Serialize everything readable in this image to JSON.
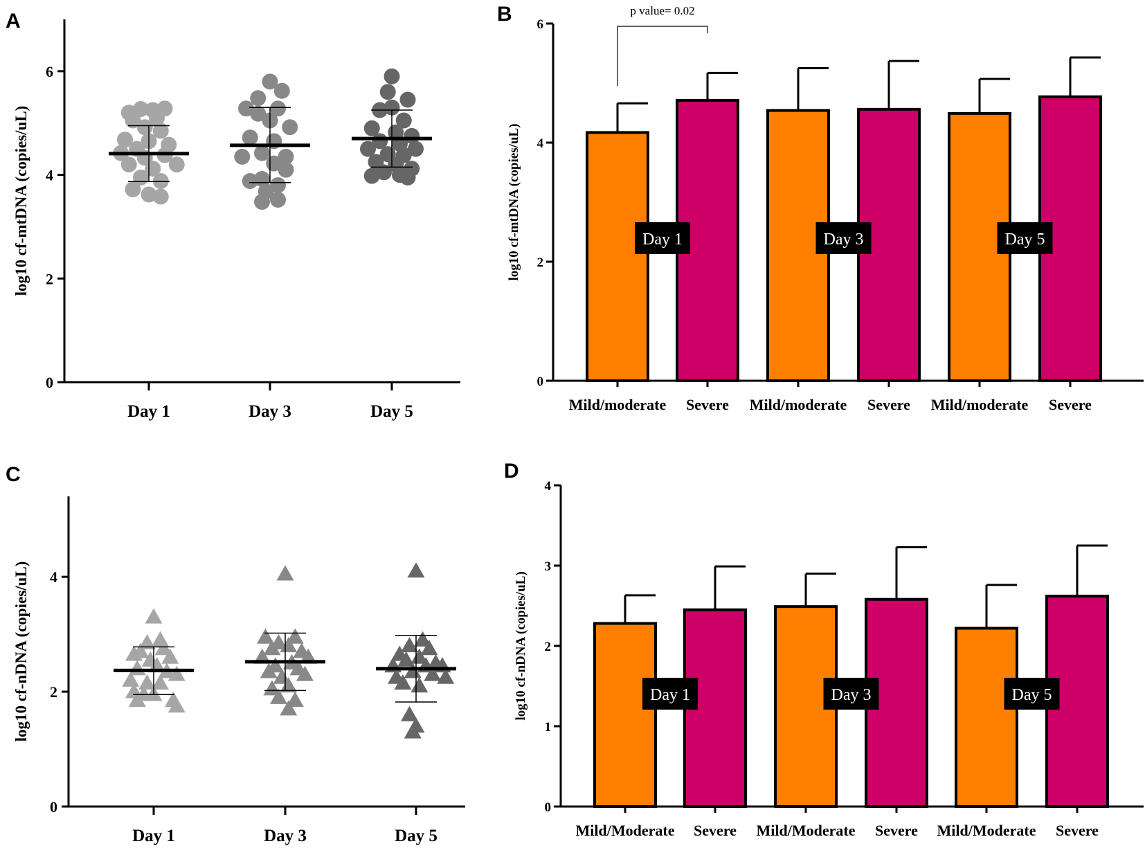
{
  "panels": [
    "A",
    "B",
    "C",
    "D"
  ],
  "colors": {
    "mild": "#ff8000",
    "severe": "#cc0066",
    "day1": "#a6a6a6",
    "day3": "#888888",
    "day5": "#666666",
    "axis": "#000000",
    "label_box": "#000000"
  },
  "chart_data": [
    {
      "panel": "A",
      "type": "scatter",
      "marker": "circle",
      "ylabel": "log10 cf-mtDNA (copies/uL)",
      "ylim": [
        0,
        7
      ],
      "yticks": [
        0,
        2,
        4,
        6
      ],
      "categories": [
        "Day 1",
        "Day 3",
        "Day 5"
      ],
      "series": [
        {
          "name": "Day 1",
          "color": "#a6a6a6",
          "mean": 4.41,
          "sd_upper": 4.95,
          "sd_lower": 3.87,
          "points": [
            {
              "x": -0.25,
              "y": 5.2
            },
            {
              "x": -0.1,
              "y": 5.27
            },
            {
              "x": 0.05,
              "y": 5.25
            },
            {
              "x": 0.2,
              "y": 5.28
            },
            {
              "x": -0.2,
              "y": 5.05
            },
            {
              "x": 0.1,
              "y": 5.1
            },
            {
              "x": -0.05,
              "y": 4.92
            },
            {
              "x": 0.15,
              "y": 4.85
            },
            {
              "x": -0.3,
              "y": 4.68
            },
            {
              "x": 0.0,
              "y": 4.65
            },
            {
              "x": 0.25,
              "y": 4.58
            },
            {
              "x": -0.15,
              "y": 4.5
            },
            {
              "x": -0.35,
              "y": 4.42
            },
            {
              "x": 0.2,
              "y": 4.38
            },
            {
              "x": -0.05,
              "y": 4.33
            },
            {
              "x": 0.35,
              "y": 4.2
            },
            {
              "x": -0.25,
              "y": 4.2
            },
            {
              "x": 0.05,
              "y": 4.12
            },
            {
              "x": -0.1,
              "y": 3.95
            },
            {
              "x": 0.15,
              "y": 3.88
            },
            {
              "x": -0.2,
              "y": 3.72
            },
            {
              "x": 0.0,
              "y": 3.62
            },
            {
              "x": 0.15,
              "y": 3.58
            }
          ]
        },
        {
          "name": "Day 3",
          "color": "#888888",
          "mean": 4.57,
          "sd_upper": 5.3,
          "sd_lower": 3.85,
          "points": [
            {
              "x": 0.0,
              "y": 5.8
            },
            {
              "x": 0.15,
              "y": 5.62
            },
            {
              "x": -0.15,
              "y": 5.48
            },
            {
              "x": -0.3,
              "y": 5.28
            },
            {
              "x": 0.1,
              "y": 5.28
            },
            {
              "x": -0.15,
              "y": 5.18
            },
            {
              "x": 0.0,
              "y": 5.05
            },
            {
              "x": 0.25,
              "y": 4.92
            },
            {
              "x": -0.25,
              "y": 4.72
            },
            {
              "x": 0.05,
              "y": 4.65
            },
            {
              "x": -0.1,
              "y": 4.42
            },
            {
              "x": 0.2,
              "y": 4.35
            },
            {
              "x": -0.35,
              "y": 4.35
            },
            {
              "x": 0.05,
              "y": 4.22
            },
            {
              "x": 0.2,
              "y": 4.1
            },
            {
              "x": -0.25,
              "y": 3.88
            },
            {
              "x": -0.1,
              "y": 3.92
            },
            {
              "x": 0.1,
              "y": 3.8
            },
            {
              "x": -0.05,
              "y": 3.68
            },
            {
              "x": 0.1,
              "y": 3.52
            },
            {
              "x": -0.1,
              "y": 3.48
            }
          ]
        },
        {
          "name": "Day 5",
          "color": "#666666",
          "mean": 4.7,
          "sd_upper": 5.25,
          "sd_lower": 4.15,
          "points": [
            {
              "x": 0.0,
              "y": 5.9
            },
            {
              "x": -0.05,
              "y": 5.6
            },
            {
              "x": 0.2,
              "y": 5.45
            },
            {
              "x": 0.0,
              "y": 5.3
            },
            {
              "x": -0.15,
              "y": 5.25
            },
            {
              "x": 0.15,
              "y": 5.05
            },
            {
              "x": -0.25,
              "y": 4.9
            },
            {
              "x": 0.05,
              "y": 4.82
            },
            {
              "x": 0.25,
              "y": 4.75
            },
            {
              "x": -0.15,
              "y": 4.65
            },
            {
              "x": 0.1,
              "y": 4.6
            },
            {
              "x": -0.3,
              "y": 4.5
            },
            {
              "x": 0.3,
              "y": 4.5
            },
            {
              "x": -0.05,
              "y": 4.4
            },
            {
              "x": 0.15,
              "y": 4.38
            },
            {
              "x": -0.2,
              "y": 4.25
            },
            {
              "x": 0.05,
              "y": 4.2
            },
            {
              "x": 0.25,
              "y": 4.12
            },
            {
              "x": -0.1,
              "y": 4.05
            },
            {
              "x": 0.1,
              "y": 4.0
            },
            {
              "x": -0.25,
              "y": 3.98
            },
            {
              "x": 0.2,
              "y": 3.95
            }
          ]
        }
      ]
    },
    {
      "panel": "B",
      "type": "bar",
      "ylabel": "log10 cf-mtDNA (copies/uL)",
      "ylim": [
        0,
        6
      ],
      "yticks": [
        0,
        2,
        4,
        6
      ],
      "categories": [
        "Mild/moderate",
        "Severe",
        "Mild/moderate",
        "Severe",
        "Mild/moderate",
        "Severe"
      ],
      "values": [
        4.17,
        4.71,
        4.54,
        4.56,
        4.49,
        4.77
      ],
      "errors": [
        0.49,
        0.46,
        0.71,
        0.81,
        0.58,
        0.66
      ],
      "groups": [
        "Day 1",
        "Day 3",
        "Day 5"
      ],
      "annotation": "p value= 0.02"
    },
    {
      "panel": "C",
      "type": "scatter",
      "marker": "triangle",
      "ylabel": "log10 cf-nDNA (copies/uL)",
      "ylim": [
        0,
        5.4
      ],
      "yticks": [
        0,
        2,
        4
      ],
      "categories": [
        "Day 1",
        "Day 3",
        "Day 5"
      ],
      "series": [
        {
          "name": "Day 1",
          "color": "#a6a6a6",
          "mean": 2.37,
          "sd_upper": 2.78,
          "sd_lower": 1.95,
          "points": [
            {
              "x": 0.0,
              "y": 3.3
            },
            {
              "x": 0.1,
              "y": 2.9
            },
            {
              "x": -0.1,
              "y": 2.85
            },
            {
              "x": 0.15,
              "y": 2.75
            },
            {
              "x": -0.2,
              "y": 2.7
            },
            {
              "x": -0.3,
              "y": 2.65
            },
            {
              "x": 0.25,
              "y": 2.6
            },
            {
              "x": -0.05,
              "y": 2.55
            },
            {
              "x": 0.05,
              "y": 2.45
            },
            {
              "x": -0.25,
              "y": 2.4
            },
            {
              "x": 0.2,
              "y": 2.35
            },
            {
              "x": 0.35,
              "y": 2.3
            },
            {
              "x": -0.35,
              "y": 2.2
            },
            {
              "x": -0.1,
              "y": 2.15
            },
            {
              "x": 0.1,
              "y": 2.15
            },
            {
              "x": -0.3,
              "y": 2.0
            },
            {
              "x": -0.15,
              "y": 1.95
            },
            {
              "x": 0.0,
              "y": 1.95
            },
            {
              "x": -0.25,
              "y": 1.85
            },
            {
              "x": 0.3,
              "y": 1.85
            },
            {
              "x": 0.35,
              "y": 1.75
            }
          ]
        },
        {
          "name": "Day 3",
          "color": "#888888",
          "mean": 2.52,
          "sd_upper": 3.02,
          "sd_lower": 2.02,
          "points": [
            {
              "x": 0.0,
              "y": 4.05
            },
            {
              "x": -0.3,
              "y": 2.95
            },
            {
              "x": 0.15,
              "y": 2.95
            },
            {
              "x": -0.1,
              "y": 2.85
            },
            {
              "x": 0.05,
              "y": 2.8
            },
            {
              "x": -0.2,
              "y": 2.75
            },
            {
              "x": 0.25,
              "y": 2.7
            },
            {
              "x": -0.35,
              "y": 2.6
            },
            {
              "x": 0.35,
              "y": 2.6
            },
            {
              "x": 0.1,
              "y": 2.5
            },
            {
              "x": -0.15,
              "y": 2.45
            },
            {
              "x": 0.2,
              "y": 2.4
            },
            {
              "x": -0.25,
              "y": 2.35
            },
            {
              "x": 0.3,
              "y": 2.3
            },
            {
              "x": -0.05,
              "y": 2.25
            },
            {
              "x": 0.05,
              "y": 2.1
            },
            {
              "x": -0.2,
              "y": 2.05
            },
            {
              "x": -0.1,
              "y": 1.9
            },
            {
              "x": 0.15,
              "y": 1.85
            },
            {
              "x": 0.05,
              "y": 1.7
            }
          ]
        },
        {
          "name": "Day 5",
          "color": "#666666",
          "mean": 2.4,
          "sd_upper": 2.98,
          "sd_lower": 1.82,
          "points": [
            {
              "x": 0.0,
              "y": 4.1
            },
            {
              "x": 0.1,
              "y": 2.9
            },
            {
              "x": -0.1,
              "y": 2.8
            },
            {
              "x": 0.2,
              "y": 2.75
            },
            {
              "x": -0.25,
              "y": 2.65
            },
            {
              "x": 0.05,
              "y": 2.6
            },
            {
              "x": -0.15,
              "y": 2.55
            },
            {
              "x": 0.3,
              "y": 2.5
            },
            {
              "x": -0.35,
              "y": 2.45
            },
            {
              "x": 0.15,
              "y": 2.45
            },
            {
              "x": 0.4,
              "y": 2.45
            },
            {
              "x": -0.05,
              "y": 2.35
            },
            {
              "x": 0.25,
              "y": 2.3
            },
            {
              "x": -0.3,
              "y": 2.25
            },
            {
              "x": 0.45,
              "y": 2.25
            },
            {
              "x": -0.2,
              "y": 2.15
            },
            {
              "x": 0.05,
              "y": 2.1
            },
            {
              "x": -0.1,
              "y": 1.6
            },
            {
              "x": 0.0,
              "y": 1.4
            },
            {
              "x": -0.05,
              "y": 1.3
            }
          ]
        }
      ]
    },
    {
      "panel": "D",
      "type": "bar",
      "ylabel": "log10 cf-nDNA (copies/uL)",
      "ylim": [
        0,
        4
      ],
      "yticks": [
        0,
        1,
        2,
        3,
        4
      ],
      "categories": [
        "Mild/Moderate",
        "Severe",
        "Mild/Moderate",
        "Severe",
        "Mild/Moderate",
        "Severe"
      ],
      "values": [
        2.28,
        2.45,
        2.49,
        2.58,
        2.22,
        2.62
      ],
      "errors": [
        0.35,
        0.54,
        0.41,
        0.65,
        0.54,
        0.63
      ],
      "groups": [
        "Day 1",
        "Day 3",
        "Day 5"
      ]
    }
  ]
}
